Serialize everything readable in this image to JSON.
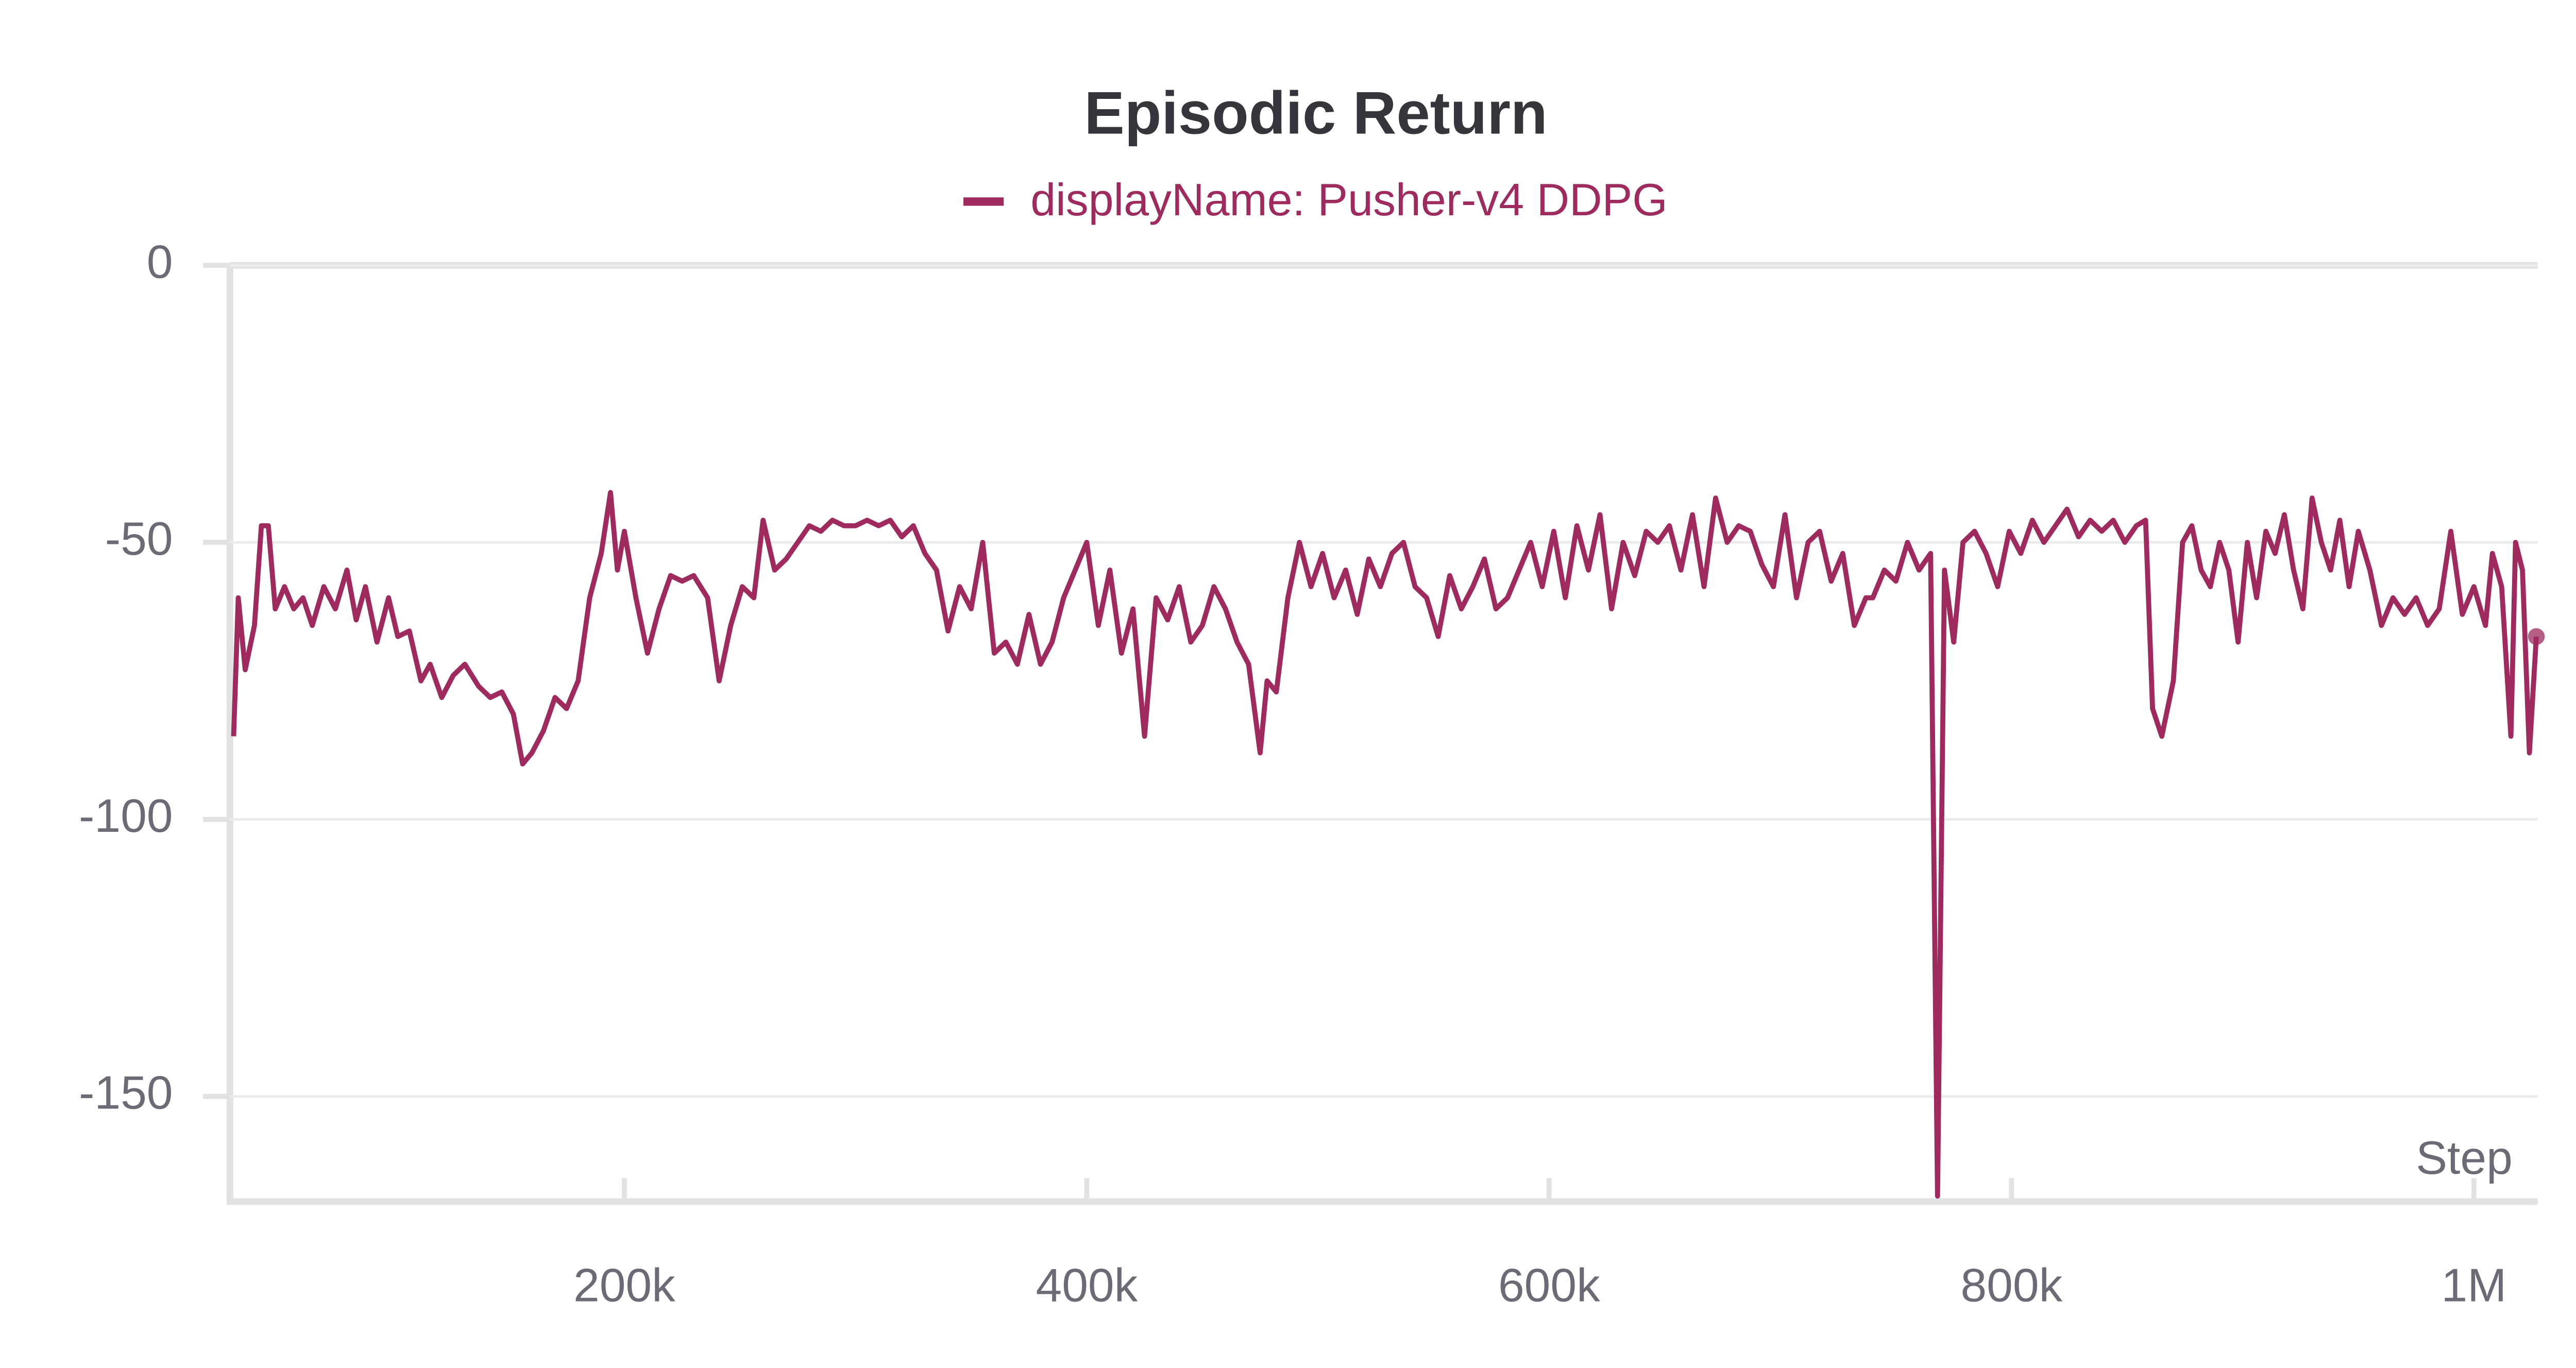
{
  "chart_data": {
    "type": "line",
    "title": "Episodic Return",
    "x_label": "Step",
    "xlim": [
      29400,
      1027600
    ],
    "ylim": [
      -169,
      0
    ],
    "xticks": [
      {
        "value": 200000,
        "label": "200k"
      },
      {
        "value": 400000,
        "label": "400k"
      },
      {
        "value": 600000,
        "label": "600k"
      },
      {
        "value": 800000,
        "label": "800k"
      },
      {
        "value": 1000000,
        "label": "1M"
      }
    ],
    "yticks": [
      0,
      -50,
      -100,
      -150
    ],
    "grid": true,
    "legend": "top",
    "x": [
      31000,
      33000,
      36000,
      40000,
      43000,
      46000,
      49000,
      53000,
      57000,
      61000,
      65000,
      70000,
      75000,
      80000,
      84000,
      88000,
      93000,
      98000,
      102000,
      107000,
      112000,
      116000,
      121000,
      126000,
      131000,
      137000,
      142000,
      147000,
      152000,
      156000,
      160000,
      165000,
      170000,
      175000,
      180000,
      185000,
      190000,
      194000,
      197000,
      200000,
      205000,
      210000,
      215000,
      220000,
      225000,
      230000,
      236000,
      241000,
      246000,
      251000,
      256000,
      260000,
      265000,
      270000,
      275000,
      280000,
      285000,
      290000,
      295000,
      300000,
      305000,
      310000,
      315000,
      320000,
      325000,
      330000,
      335000,
      340000,
      345000,
      350000,
      355000,
      360000,
      365000,
      370000,
      375000,
      380000,
      385000,
      390000,
      395000,
      400000,
      405000,
      410000,
      415000,
      420000,
      425000,
      430000,
      435000,
      440000,
      445000,
      450000,
      455000,
      460000,
      465000,
      470000,
      475000,
      478000,
      482000,
      487000,
      492000,
      497000,
      502000,
      507000,
      512000,
      517000,
      522000,
      527000,
      532000,
      537000,
      542000,
      547000,
      552000,
      557000,
      562000,
      567000,
      572000,
      577000,
      582000,
      587000,
      592000,
      597000,
      602000,
      607000,
      612000,
      617000,
      622000,
      627000,
      632000,
      637000,
      642000,
      647000,
      652000,
      657000,
      662000,
      667000,
      672000,
      677000,
      682000,
      687000,
      692000,
      697000,
      702000,
      707000,
      712000,
      717000,
      722000,
      727000,
      732000,
      737000,
      740000,
      745000,
      750000,
      755000,
      760000,
      765000,
      768000,
      771000,
      775000,
      779000,
      784000,
      789000,
      794000,
      799000,
      804000,
      809000,
      814000,
      819000,
      824000,
      829000,
      834000,
      839000,
      844000,
      849000,
      854000,
      858000,
      861000,
      865000,
      870000,
      874000,
      878000,
      882000,
      886000,
      890000,
      894000,
      898000,
      902000,
      906000,
      910000,
      914000,
      918000,
      922000,
      926000,
      930000,
      934000,
      938000,
      942000,
      946000,
      950000,
      955000,
      960000,
      965000,
      970000,
      975000,
      980000,
      985000,
      990000,
      995000,
      1000000,
      1005000,
      1008000,
      1012000,
      1016000,
      1018000,
      1021000,
      1024000,
      1027000
    ],
    "series": [
      {
        "name": "displayName: Pusher-v4 DDPG",
        "color": "#9e2a5e",
        "values": [
          -85,
          -60,
          -73,
          -65,
          -47,
          -47,
          -62,
          -58,
          -62,
          -60,
          -65,
          -58,
          -62,
          -55,
          -64,
          -58,
          -68,
          -60,
          -67,
          -66,
          -75,
          -72,
          -78,
          -74,
          -72,
          -76,
          -78,
          -77,
          -81,
          -90,
          -88,
          -84,
          -78,
          -80,
          -75,
          -60,
          -52,
          -41,
          -55,
          -48,
          -60,
          -70,
          -62,
          -56,
          -57,
          -56,
          -60,
          -75,
          -65,
          -58,
          -60,
          -46,
          -55,
          -53,
          -50,
          -47,
          -48,
          -46,
          -47,
          -47,
          -46,
          -47,
          -46,
          -49,
          -47,
          -52,
          -55,
          -66,
          -58,
          -62,
          -50,
          -70,
          -68,
          -72,
          -63,
          -72,
          -68,
          -60,
          -55,
          -50,
          -65,
          -55,
          -70,
          -62,
          -85,
          -60,
          -64,
          -58,
          -68,
          -65,
          -58,
          -62,
          -68,
          -72,
          -88,
          -75,
          -77,
          -60,
          -50,
          -58,
          -52,
          -60,
          -55,
          -63,
          -53,
          -58,
          -52,
          -50,
          -58,
          -60,
          -67,
          -56,
          -62,
          -58,
          -53,
          -62,
          -60,
          -55,
          -50,
          -58,
          -48,
          -60,
          -47,
          -55,
          -45,
          -62,
          -50,
          -56,
          -48,
          -50,
          -47,
          -55,
          -45,
          -58,
          -42,
          -50,
          -47,
          -48,
          -54,
          -58,
          -45,
          -60,
          -50,
          -48,
          -57,
          -52,
          -65,
          -60,
          -60,
          -55,
          -57,
          -50,
          -55,
          -52,
          -168,
          -55,
          -68,
          -50,
          -48,
          -52,
          -58,
          -48,
          -52,
          -46,
          -50,
          -47,
          -44,
          -49,
          -46,
          -48,
          -46,
          -50,
          -47,
          -46,
          -80,
          -85,
          -75,
          -50,
          -47,
          -55,
          -58,
          -50,
          -55,
          -68,
          -50,
          -60,
          -48,
          -52,
          -45,
          -55,
          -62,
          -42,
          -50,
          -55,
          -46,
          -58,
          -48,
          -55,
          -65,
          -60,
          -63,
          -60,
          -65,
          -62,
          -48,
          -63,
          -58,
          -65,
          -52,
          -58,
          -85,
          -50,
          -55,
          -88,
          -67
        ]
      }
    ]
  }
}
